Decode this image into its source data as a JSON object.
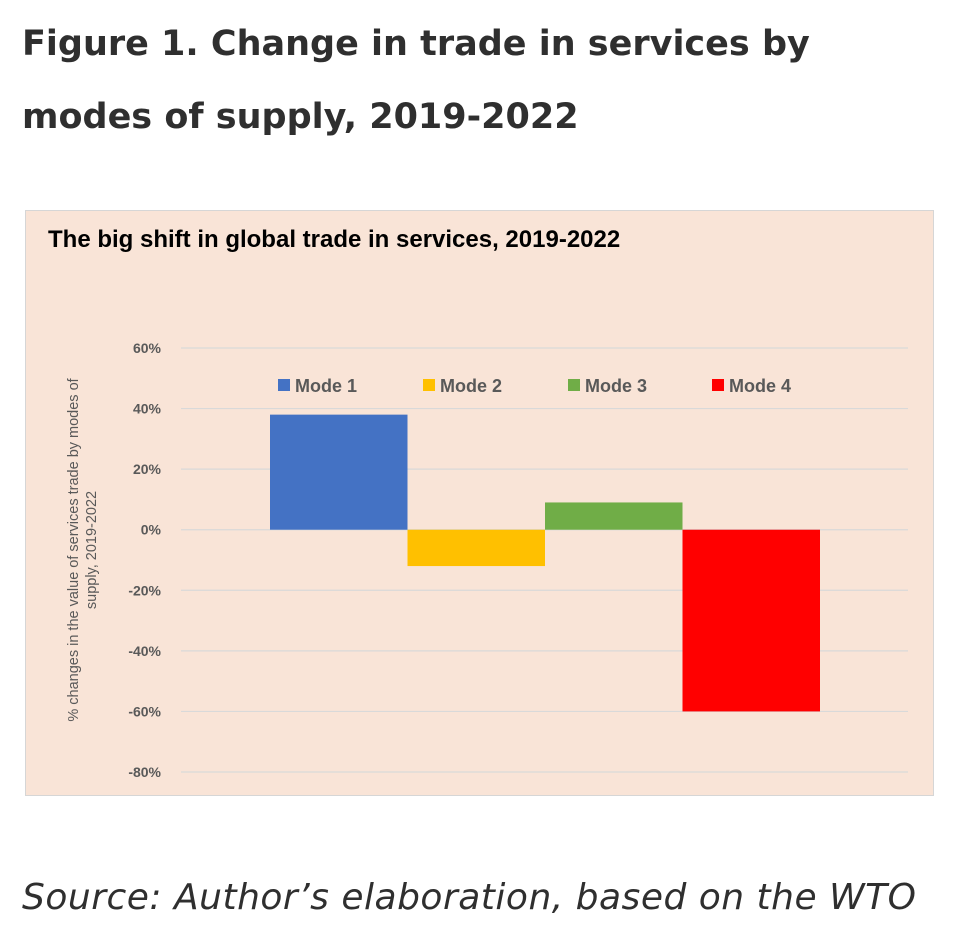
{
  "figure_title": "Figure 1. Change in trade in services by modes of supply, 2019-2022",
  "source_text": "Source: Author’s elaboration, based on the WTO",
  "chart_data": {
    "type": "bar",
    "title": "The big shift in global trade in services, 2019-2022",
    "xlabel": "",
    "ylabel": "% changes in the value of services trade by modes of supply, 2019-2022",
    "categories": [
      "Mode 1",
      "Mode 2",
      "Mode 3",
      "Mode 4"
    ],
    "values": [
      38,
      -12,
      9,
      -60
    ],
    "colors": [
      "#4472c4",
      "#ffc000",
      "#70ad47",
      "#ff0000"
    ],
    "ylim": [
      -80,
      60
    ],
    "yticks": [
      60,
      40,
      20,
      0,
      -20,
      -40,
      -60,
      -80
    ],
    "ytick_labels": [
      "60%",
      "40%",
      "20%",
      "0%",
      "-20%",
      "-40%",
      "-60%",
      "-80%"
    ],
    "grid": true,
    "legend": {
      "position": "top",
      "entries": [
        "Mode 1",
        "Mode 2",
        "Mode 3",
        "Mode 4"
      ]
    },
    "background": "#f9e4d7",
    "gridline_color": "#d9d9d9"
  }
}
